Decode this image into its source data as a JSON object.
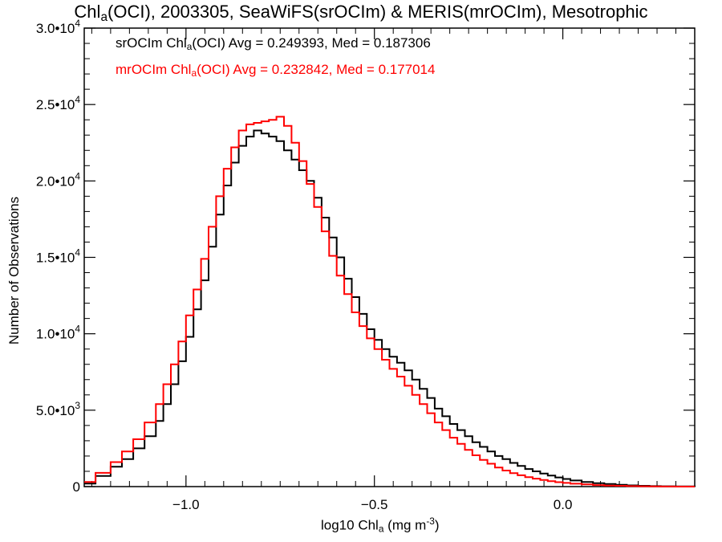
{
  "chart_data": {
    "type": "line",
    "title": {
      "pre": "Chl",
      "sub": "a",
      "post": "(OCI), 2003305, SeaWiFS(srOCIm) & MERIS(mrOCIm), Mesotrophic"
    },
    "xlabel": {
      "pre": "log10 Chl",
      "sub": "a",
      "post": " (mg m",
      "sup": "-3",
      "end": ")"
    },
    "ylabel": "Number of Observations",
    "xlim": [
      -1.27,
      0.35
    ],
    "ylim": [
      0,
      30000
    ],
    "xticks": [
      -1.0,
      -0.5,
      0.0
    ],
    "xtick_labels": [
      "−1.0",
      "−0.5",
      "0.0"
    ],
    "yticks": [
      0,
      5000,
      10000,
      15000,
      20000,
      25000,
      30000
    ],
    "ytick_labels": [
      {
        "mant": "0",
        "exp": ""
      },
      {
        "mant": "5.0•10",
        "exp": "3"
      },
      {
        "mant": "1.0•10",
        "exp": "4"
      },
      {
        "mant": "1.5•10",
        "exp": "4"
      },
      {
        "mant": "2.0•10",
        "exp": "4"
      },
      {
        "mant": "2.5•10",
        "exp": "4"
      },
      {
        "mant": "3.0•10",
        "exp": "4"
      }
    ],
    "grid": false,
    "legend_placement": "top-left",
    "series": [
      {
        "name": "srOCIm",
        "legend": {
          "pre": "srOCIm Chl",
          "sub": "a",
          "post": "(OCI) Avg = 0.249393, Med = 0.187306"
        },
        "color": "#000000",
        "x": [
          -1.27,
          -1.24,
          -1.2,
          -1.17,
          -1.14,
          -1.11,
          -1.08,
          -1.06,
          -1.04,
          -1.02,
          -1.0,
          -0.98,
          -0.96,
          -0.94,
          -0.92,
          -0.9,
          -0.88,
          -0.86,
          -0.84,
          -0.82,
          -0.8,
          -0.78,
          -0.76,
          -0.74,
          -0.72,
          -0.7,
          -0.68,
          -0.66,
          -0.64,
          -0.62,
          -0.6,
          -0.58,
          -0.56,
          -0.54,
          -0.52,
          -0.5,
          -0.48,
          -0.46,
          -0.44,
          -0.42,
          -0.4,
          -0.38,
          -0.36,
          -0.34,
          -0.32,
          -0.3,
          -0.28,
          -0.26,
          -0.24,
          -0.22,
          -0.2,
          -0.18,
          -0.16,
          -0.14,
          -0.12,
          -0.1,
          -0.08,
          -0.06,
          -0.04,
          -0.02,
          0.0,
          0.02,
          0.05,
          0.08,
          0.11,
          0.14,
          0.17,
          0.2,
          0.23,
          0.26,
          0.3,
          0.35
        ],
        "y": [
          200,
          700,
          1300,
          1800,
          2500,
          3300,
          4300,
          5400,
          6700,
          8200,
          9800,
          11600,
          13500,
          15700,
          17800,
          19700,
          21200,
          22300,
          22900,
          23300,
          23100,
          22900,
          22600,
          22000,
          21400,
          20700,
          20000,
          18900,
          17600,
          16300,
          15000,
          13600,
          12400,
          11300,
          10300,
          9600,
          9000,
          8500,
          8100,
          7600,
          7000,
          6400,
          5800,
          5100,
          4600,
          4100,
          3700,
          3300,
          2900,
          2600,
          2300,
          2000,
          1800,
          1550,
          1350,
          1150,
          1000,
          850,
          720,
          600,
          500,
          400,
          300,
          220,
          170,
          120,
          80,
          50,
          30,
          20,
          10,
          0
        ]
      },
      {
        "name": "mrOCIm",
        "legend": {
          "pre": "mrOCIm Chl",
          "sub": "a",
          "post": "(OCI) Avg = 0.232842, Med = 0.177014"
        },
        "color": "#ff0000",
        "x": [
          -1.27,
          -1.24,
          -1.2,
          -1.17,
          -1.14,
          -1.11,
          -1.08,
          -1.06,
          -1.04,
          -1.02,
          -1.0,
          -0.98,
          -0.96,
          -0.94,
          -0.92,
          -0.9,
          -0.88,
          -0.86,
          -0.84,
          -0.82,
          -0.8,
          -0.78,
          -0.76,
          -0.74,
          -0.72,
          -0.7,
          -0.68,
          -0.66,
          -0.64,
          -0.62,
          -0.6,
          -0.58,
          -0.56,
          -0.54,
          -0.52,
          -0.5,
          -0.48,
          -0.46,
          -0.44,
          -0.42,
          -0.4,
          -0.38,
          -0.36,
          -0.34,
          -0.32,
          -0.3,
          -0.28,
          -0.26,
          -0.24,
          -0.22,
          -0.2,
          -0.18,
          -0.16,
          -0.14,
          -0.12,
          -0.1,
          -0.08,
          -0.06,
          -0.04,
          -0.02,
          0.0,
          0.02,
          0.05,
          0.08,
          0.11,
          0.14,
          0.17,
          0.2,
          0.23,
          0.26,
          0.3,
          0.35
        ],
        "y": [
          300,
          900,
          1600,
          2300,
          3100,
          4200,
          5400,
          6700,
          8000,
          9500,
          11200,
          12900,
          14900,
          17000,
          19000,
          20800,
          22200,
          23300,
          23700,
          23800,
          23900,
          24000,
          24200,
          23600,
          22500,
          21300,
          19800,
          18300,
          16700,
          15100,
          13800,
          12600,
          11400,
          10500,
          9700,
          9000,
          8300,
          7700,
          7200,
          6600,
          6000,
          5400,
          4800,
          4200,
          3700,
          3200,
          2800,
          2400,
          2050,
          1750,
          1500,
          1250,
          1050,
          880,
          740,
          620,
          520,
          430,
          350,
          290,
          240,
          190,
          140,
          100,
          70,
          50,
          30,
          20,
          10,
          5,
          0,
          0
        ]
      }
    ]
  }
}
